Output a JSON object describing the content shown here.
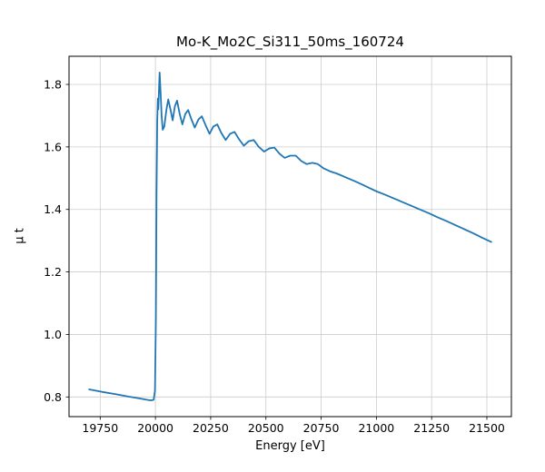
{
  "figure": {
    "background": "#ffffff"
  },
  "chart_data": {
    "type": "line",
    "title": "Mo-K_Mo2C_Si311_50ms_160724",
    "xlabel": "Energy [eV]",
    "ylabel": "μ t",
    "xlim": [
      19609,
      21611
    ],
    "ylim": [
      0.737,
      1.89
    ],
    "xticks": [
      19750,
      20000,
      20250,
      20500,
      20750,
      21000,
      21250,
      21500
    ],
    "xtick_labels": [
      "19750",
      "20000",
      "20250",
      "20500",
      "20750",
      "21000",
      "21250",
      "21500"
    ],
    "yticks": [
      0.8,
      1.0,
      1.2,
      1.4,
      1.6,
      1.8
    ],
    "ytick_labels": [
      "0.8",
      "1.0",
      "1.2",
      "1.4",
      "1.6",
      "1.8"
    ],
    "grid": true,
    "legend": null,
    "line_color": "#1f77b4",
    "grid_color": "#cccccc",
    "frame_color": "#000000",
    "series": [
      {
        "name": "mu_t",
        "x": [
          19700,
          19760,
          19820,
          19880,
          19930,
          19960,
          19980,
          19992,
          19998,
          20002,
          20005,
          20008,
          20011,
          20013,
          20016,
          20019,
          20023,
          20028,
          20033,
          20040,
          20050,
          20058,
          20068,
          20078,
          20088,
          20098,
          20110,
          20122,
          20135,
          20148,
          20162,
          20178,
          20195,
          20210,
          20228,
          20245,
          20262,
          20280,
          20298,
          20318,
          20338,
          20358,
          20378,
          20400,
          20422,
          20445,
          20468,
          20492,
          20515,
          20538,
          20562,
          20585,
          20610,
          20635,
          20660,
          20685,
          20710,
          20735,
          20760,
          20790,
          20820,
          20850,
          20880,
          20910,
          20940,
          20970,
          21000,
          21040,
          21080,
          21120,
          21160,
          21200,
          21240,
          21280,
          21320,
          21360,
          21400,
          21440,
          21480,
          21520
        ],
        "y": [
          0.824,
          0.816,
          0.809,
          0.801,
          0.795,
          0.791,
          0.789,
          0.791,
          0.82,
          1.05,
          1.45,
          1.68,
          1.755,
          1.72,
          1.78,
          1.838,
          1.78,
          1.7,
          1.655,
          1.665,
          1.72,
          1.752,
          1.72,
          1.685,
          1.73,
          1.748,
          1.705,
          1.672,
          1.705,
          1.718,
          1.69,
          1.662,
          1.688,
          1.698,
          1.668,
          1.642,
          1.665,
          1.672,
          1.645,
          1.622,
          1.642,
          1.648,
          1.625,
          1.604,
          1.618,
          1.622,
          1.6,
          1.585,
          1.595,
          1.598,
          1.578,
          1.565,
          1.572,
          1.572,
          1.555,
          1.545,
          1.549,
          1.545,
          1.532,
          1.522,
          1.515,
          1.506,
          1.497,
          1.488,
          1.478,
          1.468,
          1.458,
          1.447,
          1.435,
          1.423,
          1.411,
          1.399,
          1.387,
          1.374,
          1.362,
          1.349,
          1.336,
          1.323,
          1.309,
          1.296
        ]
      }
    ]
  }
}
